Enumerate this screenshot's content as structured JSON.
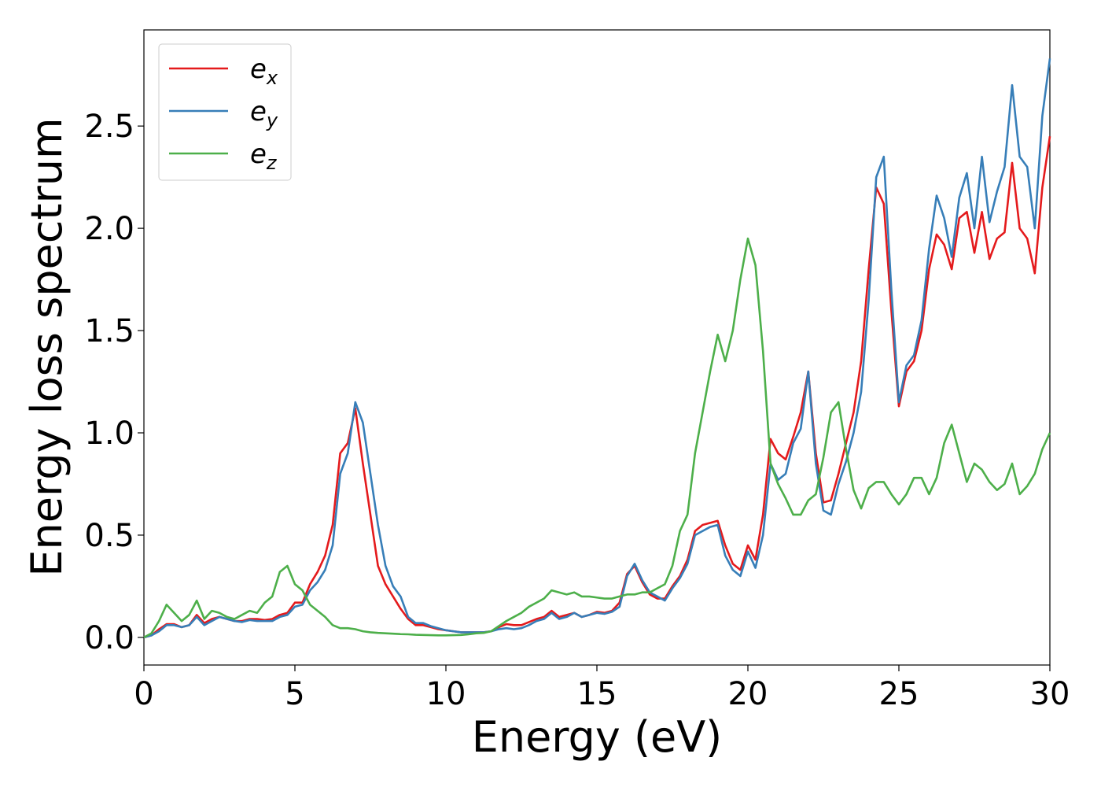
{
  "chart_data": {
    "type": "line",
    "xlabel": "Energy (eV)",
    "ylabel": "Energy loss spectrum",
    "xlim": [
      0,
      30
    ],
    "ylim": [
      -0.135,
      2.97
    ],
    "xticks": [
      0,
      5,
      10,
      15,
      20,
      25,
      30
    ],
    "yticks": [
      {
        "value": 0,
        "label": "0.0"
      },
      0.5,
      {
        "value": 1,
        "label": "1.0"
      },
      1.5,
      {
        "value": 2,
        "label": "2.0"
      },
      2.5
    ],
    "grid": false,
    "legend": "upper left",
    "x": [
      0,
      0.25,
      0.5,
      0.75,
      1,
      1.25,
      1.5,
      1.75,
      2,
      2.25,
      2.5,
      2.75,
      3,
      3.25,
      3.5,
      3.75,
      4,
      4.25,
      4.5,
      4.75,
      5,
      5.25,
      5.5,
      5.75,
      6,
      6.25,
      6.5,
      6.75,
      7,
      7.25,
      7.5,
      7.75,
      8,
      8.25,
      8.5,
      8.75,
      9,
      9.25,
      9.5,
      9.75,
      10,
      10.25,
      10.5,
      10.75,
      11,
      11.25,
      11.5,
      11.75,
      12,
      12.25,
      12.5,
      12.75,
      13,
      13.25,
      13.5,
      13.75,
      14,
      14.25,
      14.5,
      14.75,
      15,
      15.25,
      15.5,
      15.75,
      16,
      16.25,
      16.5,
      16.75,
      17,
      17.25,
      17.5,
      17.75,
      18,
      18.25,
      18.5,
      18.75,
      19,
      19.25,
      19.5,
      19.75,
      20,
      20.25,
      20.5,
      20.75,
      21,
      21.25,
      21.5,
      21.75,
      22,
      22.25,
      22.5,
      22.75,
      23,
      23.25,
      23.5,
      23.75,
      24,
      24.25,
      24.5,
      24.75,
      25,
      25.25,
      25.5,
      25.75,
      26,
      26.25,
      26.5,
      26.75,
      27,
      27.25,
      27.5,
      27.75,
      28,
      28.25,
      28.5,
      28.75,
      29,
      29.25,
      29.5,
      29.75,
      30
    ],
    "series": [
      {
        "name": "ex",
        "color": "#e41a1c",
        "values": [
          0,
          0.01,
          0.04,
          0.065,
          0.065,
          0.05,
          0.06,
          0.11,
          0.07,
          0.09,
          0.1,
          0.09,
          0.08,
          0.08,
          0.09,
          0.09,
          0.085,
          0.09,
          0.11,
          0.12,
          0.17,
          0.17,
          0.26,
          0.32,
          0.4,
          0.55,
          0.9,
          0.95,
          1.12,
          0.85,
          0.6,
          0.35,
          0.26,
          0.2,
          0.14,
          0.09,
          0.06,
          0.06,
          0.05,
          0.04,
          0.035,
          0.03,
          0.025,
          0.025,
          0.025,
          0.025,
          0.03,
          0.05,
          0.065,
          0.06,
          0.06,
          0.075,
          0.09,
          0.1,
          0.13,
          0.1,
          0.11,
          0.12,
          0.1,
          0.11,
          0.125,
          0.12,
          0.13,
          0.17,
          0.31,
          0.35,
          0.27,
          0.21,
          0.19,
          0.19,
          0.25,
          0.3,
          0.38,
          0.52,
          0.55,
          0.56,
          0.57,
          0.45,
          0.36,
          0.33,
          0.45,
          0.38,
          0.6,
          0.97,
          0.9,
          0.87,
          0.98,
          1.1,
          1.3,
          0.9,
          0.66,
          0.67,
          0.8,
          0.95,
          1.1,
          1.35,
          1.8,
          2.2,
          2.12,
          1.6,
          1.13,
          1.3,
          1.35,
          1.5,
          1.8,
          1.97,
          1.92,
          1.8,
          2.05,
          2.08,
          1.88,
          2.08,
          1.85,
          1.95,
          1.98,
          2.32,
          2.0,
          1.95,
          1.78,
          2.2,
          2.45
        ]
      },
      {
        "name": "ey",
        "color": "#377eb8",
        "values": [
          0,
          0.01,
          0.03,
          0.06,
          0.06,
          0.05,
          0.06,
          0.1,
          0.06,
          0.08,
          0.1,
          0.09,
          0.08,
          0.075,
          0.085,
          0.08,
          0.08,
          0.08,
          0.1,
          0.11,
          0.15,
          0.16,
          0.23,
          0.27,
          0.33,
          0.45,
          0.8,
          0.9,
          1.15,
          1.05,
          0.8,
          0.55,
          0.35,
          0.25,
          0.2,
          0.1,
          0.07,
          0.07,
          0.055,
          0.045,
          0.035,
          0.03,
          0.025,
          0.025,
          0.025,
          0.025,
          0.03,
          0.04,
          0.045,
          0.04,
          0.045,
          0.06,
          0.08,
          0.09,
          0.12,
          0.09,
          0.1,
          0.12,
          0.1,
          0.11,
          0.12,
          0.115,
          0.125,
          0.15,
          0.3,
          0.36,
          0.28,
          0.22,
          0.2,
          0.18,
          0.24,
          0.29,
          0.36,
          0.5,
          0.52,
          0.54,
          0.55,
          0.4,
          0.33,
          0.3,
          0.42,
          0.34,
          0.5,
          0.85,
          0.77,
          0.8,
          0.95,
          1.02,
          1.3,
          0.85,
          0.62,
          0.6,
          0.75,
          0.86,
          1.0,
          1.2,
          1.65,
          2.25,
          2.35,
          1.7,
          1.15,
          1.33,
          1.38,
          1.55,
          1.9,
          2.16,
          2.05,
          1.86,
          2.15,
          2.27,
          2.0,
          2.35,
          2.03,
          2.18,
          2.3,
          2.7,
          2.35,
          2.3,
          2.0,
          2.55,
          2.83
        ]
      },
      {
        "name": "ez",
        "color": "#4daf4a",
        "values": [
          0,
          0.02,
          0.08,
          0.16,
          0.12,
          0.08,
          0.11,
          0.18,
          0.09,
          0.13,
          0.12,
          0.1,
          0.09,
          0.11,
          0.13,
          0.12,
          0.17,
          0.2,
          0.32,
          0.35,
          0.26,
          0.23,
          0.16,
          0.13,
          0.1,
          0.06,
          0.045,
          0.045,
          0.04,
          0.03,
          0.025,
          0.022,
          0.02,
          0.018,
          0.016,
          0.015,
          0.013,
          0.012,
          0.011,
          0.01,
          0.01,
          0.011,
          0.012,
          0.015,
          0.02,
          0.022,
          0.03,
          0.055,
          0.08,
          0.1,
          0.12,
          0.15,
          0.17,
          0.19,
          0.23,
          0.22,
          0.21,
          0.22,
          0.2,
          0.2,
          0.195,
          0.19,
          0.19,
          0.2,
          0.21,
          0.21,
          0.22,
          0.22,
          0.24,
          0.26,
          0.35,
          0.52,
          0.6,
          0.9,
          1.1,
          1.3,
          1.48,
          1.35,
          1.5,
          1.75,
          1.95,
          1.82,
          1.4,
          0.85,
          0.75,
          0.68,
          0.6,
          0.6,
          0.67,
          0.7,
          0.88,
          1.1,
          1.15,
          0.92,
          0.72,
          0.63,
          0.73,
          0.76,
          0.76,
          0.7,
          0.65,
          0.7,
          0.78,
          0.78,
          0.7,
          0.78,
          0.95,
          1.04,
          0.9,
          0.76,
          0.85,
          0.82,
          0.76,
          0.72,
          0.75,
          0.85,
          0.7,
          0.74,
          0.8,
          0.92,
          1.0
        ]
      }
    ]
  }
}
